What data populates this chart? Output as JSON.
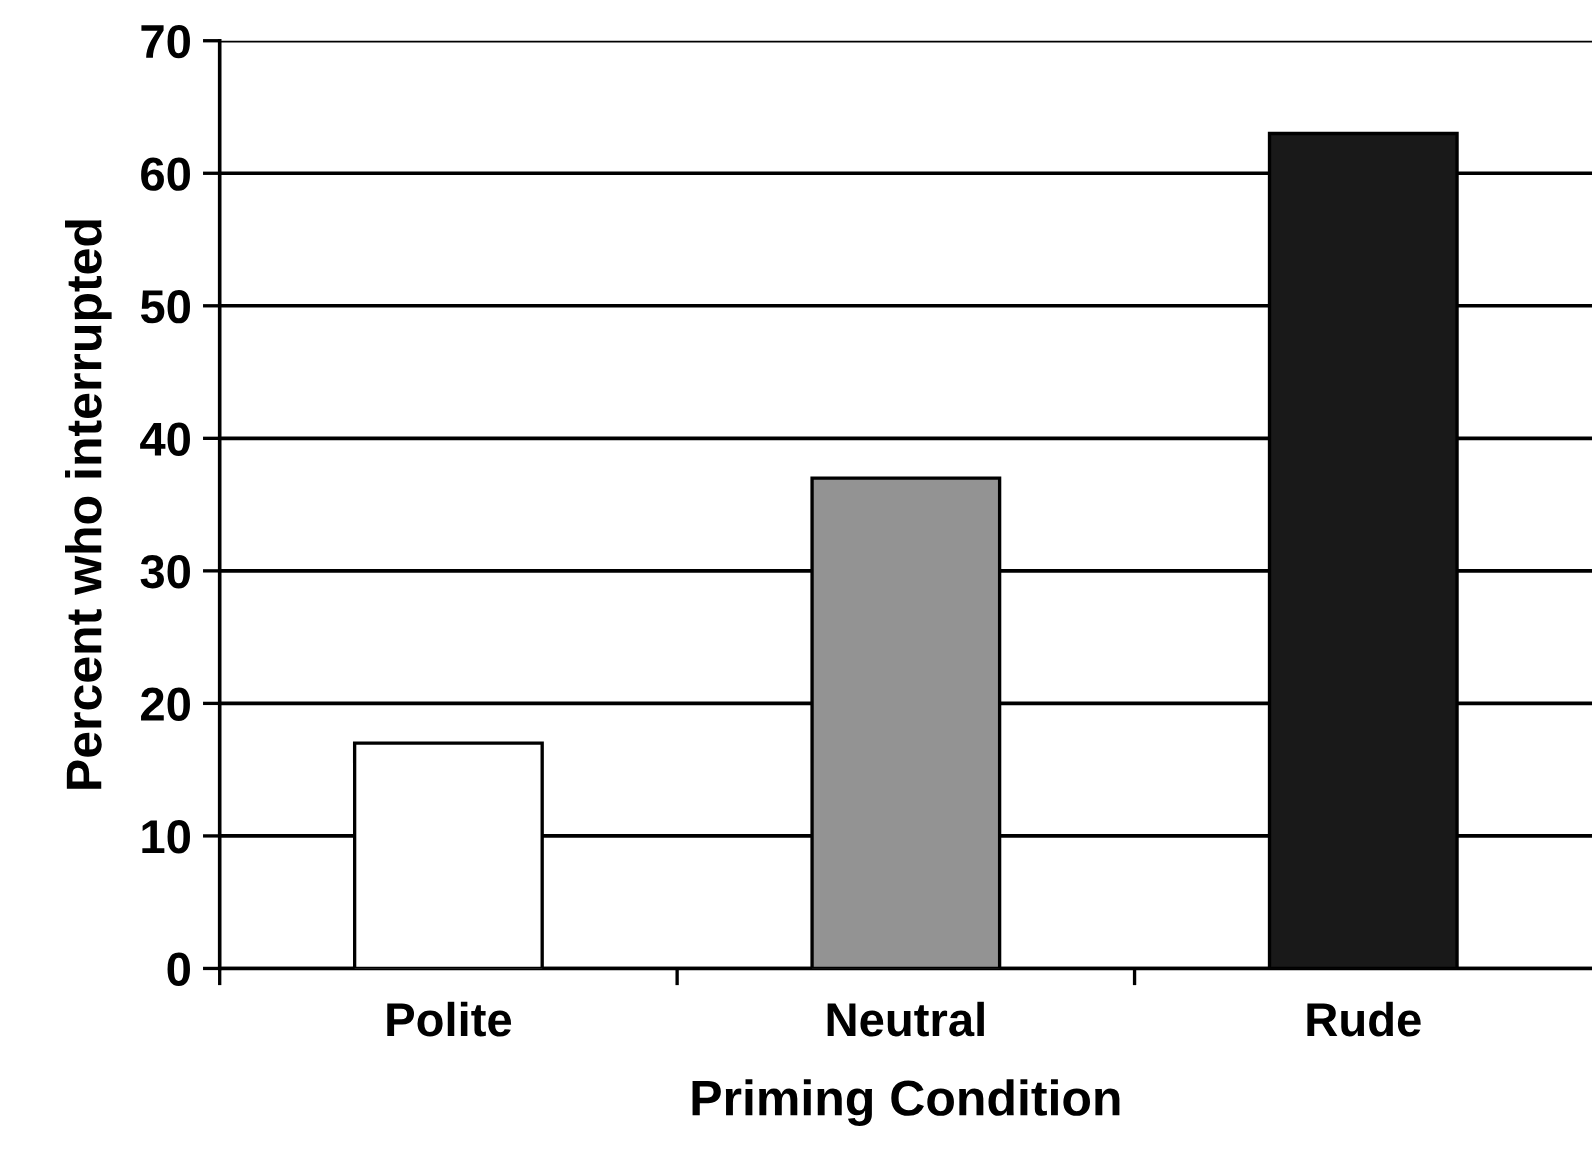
{
  "chart_data": {
    "type": "bar",
    "xlabel": "Priming Condition",
    "ylabel": "Percent who interrupted",
    "categories": [
      "Polite",
      "Neutral",
      "Rude"
    ],
    "values": [
      17,
      37,
      63
    ],
    "colors": [
      "#ffffff",
      "#939393",
      "#191919"
    ],
    "ylim": [
      0,
      70
    ],
    "yticks": [
      0,
      10,
      20,
      30,
      40,
      50,
      60,
      70
    ],
    "grid": "y"
  }
}
